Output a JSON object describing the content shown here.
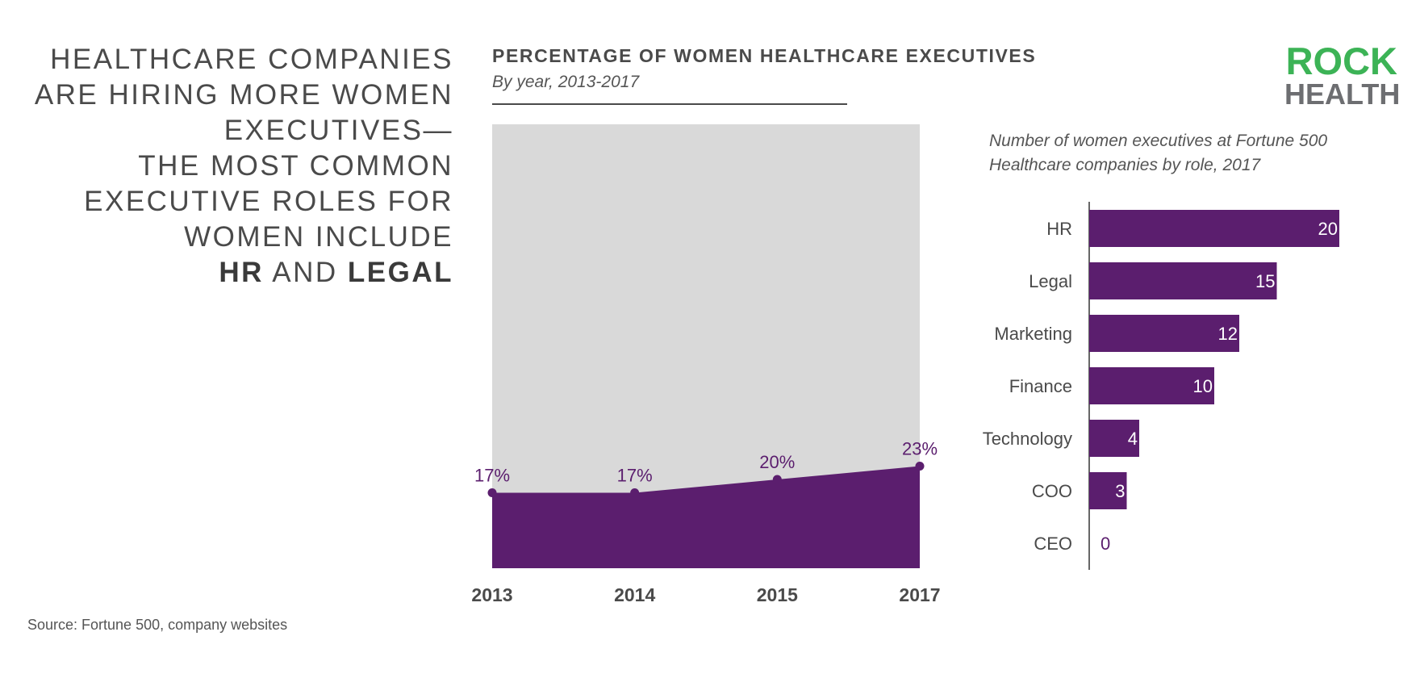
{
  "headline": {
    "lines": [
      "HEALTHCARE COMPANIES",
      "ARE HIRING MORE WOMEN",
      "EXECUTIVES—",
      "THE MOST COMMON",
      "EXECUTIVE ROLES FOR",
      "WOMEN INCLUDE"
    ],
    "last_line": {
      "bold_1": "HR",
      "mid": " AND ",
      "bold_2": "LEGAL"
    }
  },
  "logo": {
    "line1": "ROCK",
    "line2": "HEALTH"
  },
  "source": "Source: Fortune 500, company websites",
  "colors": {
    "purple": "#5b1e6e",
    "gray_area": "#d9d9d9",
    "logo_green": "#3cb356",
    "logo_gray": "#6d6e71"
  },
  "chart_data": [
    {
      "type": "area",
      "title": "PERCENTAGE OF WOMEN HEALTHCARE EXECUTIVES",
      "subtitle": "By year, 2013-2017",
      "x": [
        "2013",
        "2014",
        "2015",
        "2017"
      ],
      "series": [
        {
          "values": [
            17,
            17,
            20,
            23
          ],
          "labels": [
            "17%",
            "17%",
            "20%",
            "23%"
          ]
        }
      ],
      "ylim": [
        0,
        100
      ],
      "background_total": 100,
      "grid": false
    },
    {
      "type": "bar",
      "orientation": "horizontal",
      "subtitle": "Number of women executives at Fortune 500 Healthcare companies by role, 2017",
      "categories": [
        "HR",
        "Legal",
        "Marketing",
        "Finance",
        "Technology",
        "COO",
        "CEO"
      ],
      "values": [
        20,
        15,
        12,
        10,
        4,
        3,
        0
      ],
      "grid": false
    }
  ]
}
